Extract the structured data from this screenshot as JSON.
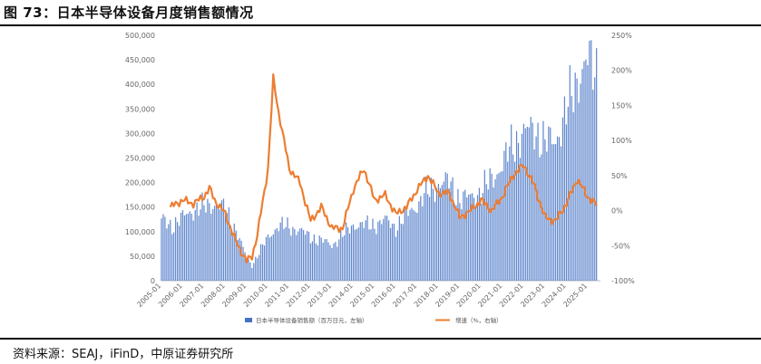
{
  "figure": {
    "title": "图 73：日本半导体设备月度销售额情况",
    "source": "资料来源：SEAJ，iFinD，中原证券研究所"
  },
  "chart_data": {
    "type": "bar+line",
    "title": "日本半导体设备月度销售额情况",
    "x_ticks": [
      "2005-01",
      "2006-01",
      "2007-01",
      "2008-01",
      "2009-01",
      "2010-01",
      "2011-01",
      "2012-01",
      "2013-01",
      "2014-01",
      "2015-01",
      "2016-01",
      "2017-01",
      "2018-01",
      "2019-01",
      "2020-01",
      "2021-01",
      "2022-01",
      "2023-01",
      "2024-01",
      "2025-01"
    ],
    "y_left": {
      "min": 0,
      "max": 500000,
      "ticks": [
        "0",
        "50,000",
        "100,000",
        "150,000",
        "200,000",
        "250,000",
        "300,000",
        "350,000",
        "400,000",
        "450,000",
        "500,000"
      ]
    },
    "y_right": {
      "min": -100,
      "max": 250,
      "ticks": [
        "-100%",
        "-50%",
        "0%",
        "50%",
        "100%",
        "150%",
        "200%",
        "250%"
      ]
    },
    "series": [
      {
        "name": "日本半导体设备销售额（百万日元，左轴）",
        "type": "bar",
        "axis": "left",
        "color": "#4472c4",
        "annual_points": [
          {
            "x": "2005-01",
            "y": 120000
          },
          {
            "x": "2005-07",
            "y": 108000
          },
          {
            "x": "2006-01",
            "y": 125000
          },
          {
            "x": "2006-07",
            "y": 140000
          },
          {
            "x": "2007-01",
            "y": 145000
          },
          {
            "x": "2007-07",
            "y": 152000
          },
          {
            "x": "2008-01",
            "y": 140000
          },
          {
            "x": "2008-07",
            "y": 100000
          },
          {
            "x": "2009-01",
            "y": 45000
          },
          {
            "x": "2009-04",
            "y": 30000
          },
          {
            "x": "2009-07",
            "y": 50000
          },
          {
            "x": "2010-01",
            "y": 85000
          },
          {
            "x": "2010-07",
            "y": 110000
          },
          {
            "x": "2011-01",
            "y": 105000
          },
          {
            "x": "2011-07",
            "y": 100000
          },
          {
            "x": "2012-01",
            "y": 85000
          },
          {
            "x": "2012-07",
            "y": 80000
          },
          {
            "x": "2013-01",
            "y": 70000
          },
          {
            "x": "2013-07",
            "y": 90000
          },
          {
            "x": "2014-01",
            "y": 110000
          },
          {
            "x": "2014-07",
            "y": 110000
          },
          {
            "x": "2015-01",
            "y": 110000
          },
          {
            "x": "2015-07",
            "y": 120000
          },
          {
            "x": "2016-01",
            "y": 105000
          },
          {
            "x": "2016-07",
            "y": 130000
          },
          {
            "x": "2017-01",
            "y": 150000
          },
          {
            "x": "2017-07",
            "y": 175000
          },
          {
            "x": "2018-01",
            "y": 190000
          },
          {
            "x": "2018-07",
            "y": 195000
          },
          {
            "x": "2019-01",
            "y": 160000
          },
          {
            "x": "2019-07",
            "y": 165000
          },
          {
            "x": "2020-01",
            "y": 175000
          },
          {
            "x": "2020-07",
            "y": 200000
          },
          {
            "x": "2021-01",
            "y": 230000
          },
          {
            "x": "2021-07",
            "y": 270000
          },
          {
            "x": "2022-01",
            "y": 290000
          },
          {
            "x": "2022-07",
            "y": 300000
          },
          {
            "x": "2023-01",
            "y": 270000
          },
          {
            "x": "2023-07",
            "y": 280000
          },
          {
            "x": "2024-01",
            "y": 330000
          },
          {
            "x": "2024-07",
            "y": 400000
          },
          {
            "x": "2025-01",
            "y": 430000
          },
          {
            "x": "2025-06",
            "y": 415000
          }
        ]
      },
      {
        "name": "增速（%，右轴）",
        "type": "line",
        "axis": "right",
        "color": "#ed7d31",
        "points": [
          {
            "x": "2005-06",
            "y": 5
          },
          {
            "x": "2006-01",
            "y": 15
          },
          {
            "x": "2006-07",
            "y": 10
          },
          {
            "x": "2007-01",
            "y": 20
          },
          {
            "x": "2007-04",
            "y": 32
          },
          {
            "x": "2007-07",
            "y": 15
          },
          {
            "x": "2008-01",
            "y": -5
          },
          {
            "x": "2008-07",
            "y": -45
          },
          {
            "x": "2009-01",
            "y": -72
          },
          {
            "x": "2009-04",
            "y": -65
          },
          {
            "x": "2009-07",
            "y": -35
          },
          {
            "x": "2010-01",
            "y": 60
          },
          {
            "x": "2010-04",
            "y": 188
          },
          {
            "x": "2010-07",
            "y": 140
          },
          {
            "x": "2011-01",
            "y": 60
          },
          {
            "x": "2011-07",
            "y": 40
          },
          {
            "x": "2012-01",
            "y": -15
          },
          {
            "x": "2012-07",
            "y": 5
          },
          {
            "x": "2013-01",
            "y": -25
          },
          {
            "x": "2013-07",
            "y": -25
          },
          {
            "x": "2014-01",
            "y": 30
          },
          {
            "x": "2014-07",
            "y": 60
          },
          {
            "x": "2015-01",
            "y": 15
          },
          {
            "x": "2015-07",
            "y": 22
          },
          {
            "x": "2016-01",
            "y": -5
          },
          {
            "x": "2016-07",
            "y": 5
          },
          {
            "x": "2017-01",
            "y": 30
          },
          {
            "x": "2017-07",
            "y": 50
          },
          {
            "x": "2018-01",
            "y": 25
          },
          {
            "x": "2018-07",
            "y": 25
          },
          {
            "x": "2019-01",
            "y": -10
          },
          {
            "x": "2019-07",
            "y": 0
          },
          {
            "x": "2020-01",
            "y": 15
          },
          {
            "x": "2020-07",
            "y": 0
          },
          {
            "x": "2021-01",
            "y": 20
          },
          {
            "x": "2021-07",
            "y": 50
          },
          {
            "x": "2022-01",
            "y": 65
          },
          {
            "x": "2022-07",
            "y": 35
          },
          {
            "x": "2023-01",
            "y": -10
          },
          {
            "x": "2023-07",
            "y": -15
          },
          {
            "x": "2024-01",
            "y": 10
          },
          {
            "x": "2024-07",
            "y": 45
          },
          {
            "x": "2025-01",
            "y": 20
          },
          {
            "x": "2025-06",
            "y": 8
          }
        ]
      }
    ],
    "legend": [
      "日本半导体设备销售额（百万日元，左轴）",
      "增速（%，右轴）"
    ],
    "legend_position": "bottom"
  }
}
